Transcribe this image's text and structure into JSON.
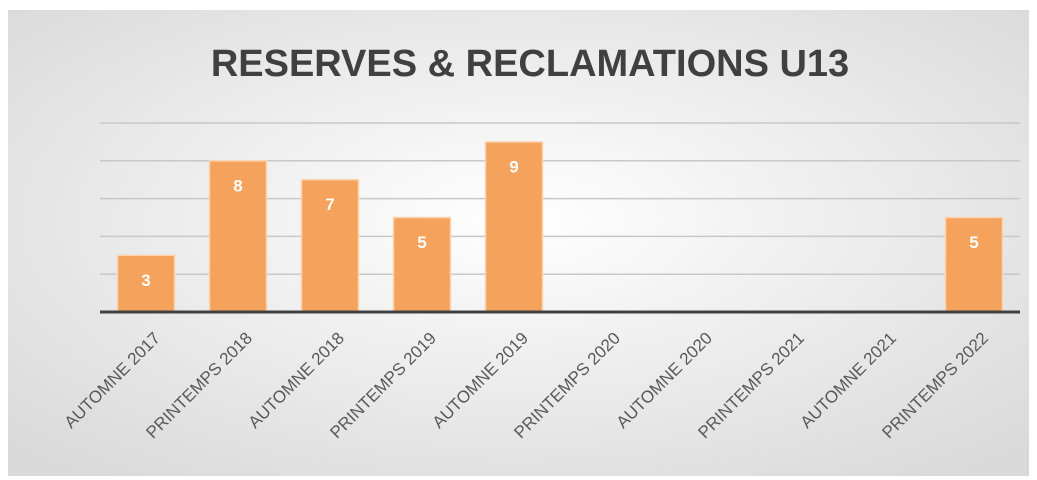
{
  "chart_data": {
    "type": "bar",
    "title": "RESERVES & RECLAMATIONS U13",
    "categories": [
      "AUTOMNE 2017",
      "PRINTEMPS 2018",
      "AUTOMNE 2018",
      "PRINTEMPS 2019",
      "AUTOMNE 2019",
      "PRINTEMPS 2020",
      "AUTOMNE 2020",
      "PRINTEMPS 2021",
      "AUTOMNE 2021",
      "PRINTEMPS 2022"
    ],
    "values": [
      3,
      8,
      7,
      5,
      9,
      null,
      null,
      null,
      null,
      5
    ],
    "color": "#f4a25c",
    "ylim": [
      0,
      10
    ],
    "yticks": [
      0,
      2,
      4,
      6,
      8,
      10
    ],
    "grid": true
  }
}
